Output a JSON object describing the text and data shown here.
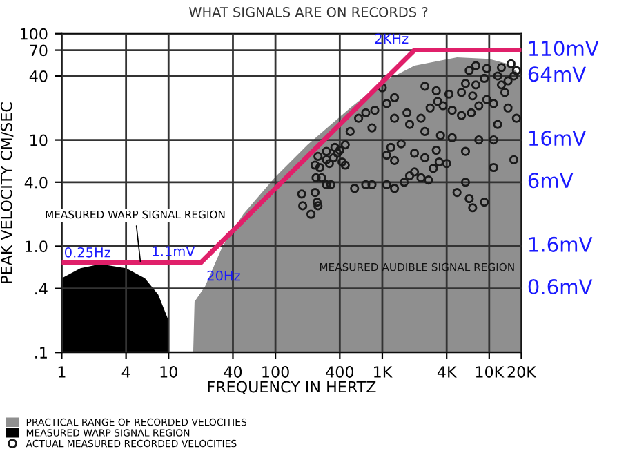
{
  "chart_data": {
    "type": "area",
    "title": "WHAT SIGNALS ARE ON RECORDS ?",
    "xlabel": "FREQUENCY IN HERTZ",
    "ylabel": "PEAK VELOCITY CM/SEC",
    "log": "xy",
    "grid": true,
    "legend": "bottom",
    "xlim": [
      1,
      20000
    ],
    "xticks": [
      1,
      4,
      10,
      40,
      100,
      400,
      {
        "value": 1000,
        "label": "1K"
      },
      {
        "value": 4000,
        "label": "4K"
      },
      {
        "value": 10000,
        "label": "10K"
      },
      {
        "value": 20000,
        "label": "20K"
      }
    ],
    "ylim": [
      0.1,
      100
    ],
    "yticks": [
      {
        "value": 0.1,
        "label": ".1"
      },
      {
        "value": 0.4,
        "label": ".4"
      },
      {
        "value": 1,
        "label": "1.0"
      },
      {
        "value": 4,
        "label": "4.0"
      },
      10,
      40,
      70,
      100
    ],
    "series": [
      {
        "name": "PRACTICAL RANGE OF RECORDED VELOCITIES",
        "color": "#8f8f8f",
        "x": [
          17,
          17.5,
          22,
          32,
          50,
          100,
          200,
          500,
          1000,
          2000,
          5000,
          10000,
          15000,
          20000
        ],
        "values": [
          0.1,
          0.3,
          0.42,
          1,
          2,
          4.5,
          9,
          20,
          35,
          50,
          60,
          58,
          52,
          40
        ]
      },
      {
        "name": "MEASURED WARP SIGNAL REGION",
        "color": "#000000",
        "x": [
          1,
          1.5,
          2.3,
          4,
          6,
          8,
          10
        ],
        "values": [
          0.5,
          0.62,
          0.68,
          0.62,
          0.5,
          0.35,
          0.2
        ]
      },
      {
        "type": "scatter",
        "name": "ACTUAL MEASURED RECORDED VELOCITIES",
        "color": "#1a1a1a",
        "marker": "circle",
        "x": [
          176,
          180,
          235,
          245,
          250,
          215,
          300,
          330,
          270,
          240,
          235,
          260,
          300,
          320,
          350,
          380,
          360,
          400,
          420,
          450,
          300,
          250,
          550,
          700,
          800,
          1100,
          1300,
          1600,
          1800,
          2000,
          2300,
          2700,
          3000,
          3400,
          2500,
          1300,
          1100,
          1200,
          1500,
          2000,
          3200,
          4000,
          6000,
          7000,
          6500,
          5000,
          9000,
          11000,
          17000,
          6000,
          8000,
          11000,
          4500,
          3500,
          2500,
          1800,
          1300,
          1100,
          1300,
          1700,
          2300,
          2800,
          3300,
          3700,
          4500,
          5500,
          6800,
          8000,
          9500,
          7000,
          5500,
          4200,
          3200,
          2500,
          6000,
          7500,
          9000,
          6500,
          7500,
          9500,
          12000,
          13000,
          14000,
          15000,
          17000,
          18000,
          13000,
          16000,
          11000,
          15000,
          800,
          850,
          1000,
          700,
          600,
          500,
          450,
          12000,
          18000
        ],
        "values": [
          3.1,
          2.4,
          3.2,
          2.6,
          2.4,
          2.0,
          3.8,
          3.8,
          4.4,
          4.4,
          5.8,
          5.5,
          6.5,
          6.0,
          6.8,
          7.5,
          8.5,
          8,
          6.2,
          5.8,
          7.8,
          7,
          3.5,
          3.8,
          3.8,
          3.8,
          3.5,
          4,
          4.6,
          5,
          4.4,
          4.2,
          5.4,
          6.2,
          6.8,
          6.4,
          7.2,
          8.5,
          9.2,
          7.5,
          8,
          6,
          4,
          2.3,
          2.8,
          3.2,
          2.6,
          5.5,
          6.5,
          7.8,
          10,
          10,
          10.5,
          11,
          12,
          14,
          16,
          22,
          25,
          18,
          16,
          20,
          23,
          21,
          19,
          17,
          18,
          21,
          24,
          26,
          28,
          27,
          29,
          32,
          34,
          33,
          38,
          45,
          50,
          47,
          40,
          33,
          28,
          36,
          40,
          45,
          48,
          52,
          22,
          20,
          13,
          19,
          31,
          18,
          16,
          12,
          9,
          14,
          16
        ]
      },
      {
        "type": "line",
        "color": "#e0206a",
        "x": [
          1,
          20,
          2000,
          20000
        ],
        "values": [
          0.7,
          0.7,
          70,
          70
        ]
      }
    ],
    "annotations": [
      {
        "text": "MEASURED WARP SIGNAL REGION",
        "x": 5.5,
        "y": 0.66
      },
      "MEASURED AUDIBLE SIGNAL REGION",
      "0.25Hz",
      {
        "text": "1.1mV",
        "x": 20,
        "y": 0.7
      },
      {
        "text": "20Hz",
        "x": 20,
        "y": 0.7
      },
      {
        "text": "2KHz",
        "x": 2000,
        "y": 70
      },
      {
        "text": "110mV",
        "x": 20000,
        "y": 70
      },
      {
        "text": "64mV",
        "x": 20000,
        "y": 40
      },
      {
        "text": "16mV",
        "x": 20000,
        "y": 10
      },
      {
        "text": "6mV",
        "x": 20000,
        "y": 4
      },
      {
        "text": "1.6mV",
        "x": 20000,
        "y": 1
      },
      {
        "text": "0.6mV",
        "x": 20000,
        "y": 0.4
      }
    ]
  }
}
